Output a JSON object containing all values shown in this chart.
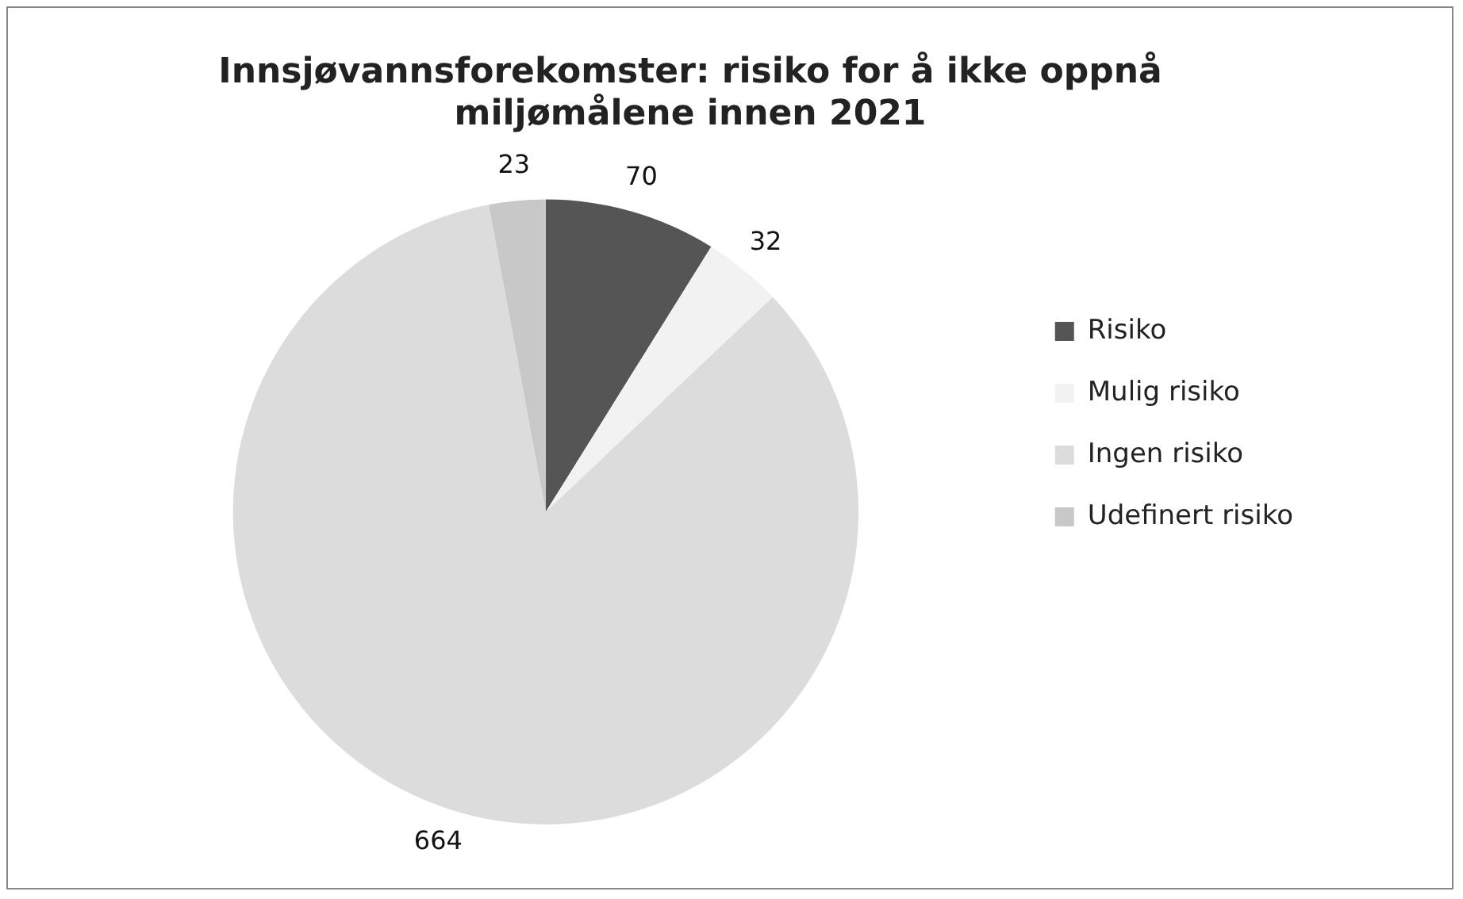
{
  "chart_data": {
    "type": "pie",
    "title": "Innsjøvannsforekomster: risiko for å ikke oppnå miljømålene innen 2021",
    "categories": [
      "Risiko",
      "Mulig risiko",
      "Ingen risiko",
      "Udefinert risiko"
    ],
    "values": [
      70,
      32,
      664,
      23
    ],
    "colors": [
      "#555555",
      "#f2f2f2",
      "#dcdcdc",
      "#c8c8c8"
    ],
    "data_labels": true,
    "legend": "right"
  }
}
